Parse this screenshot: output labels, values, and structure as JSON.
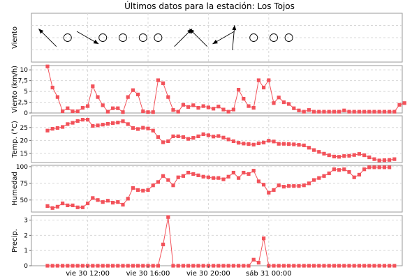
{
  "chart_data": {
    "title": "Últimos datos para la estación: Los Tojos",
    "type": "line",
    "accent_color": "#f2525a",
    "x_axis": {
      "labels": [
        "vie 30 12:00",
        "vie 30 16:00",
        "vie 30 20:00",
        "sáb 31 00:00"
      ],
      "label_index": [
        8,
        20,
        32,
        44
      ]
    },
    "panels": [
      {
        "key": "viento_dir",
        "ylabel": "Viento",
        "type": "wind",
        "wind": [
          {
            "i": 0,
            "calm": false,
            "to_deg": 315
          },
          {
            "i": 4,
            "calm": true
          },
          {
            "i": 8,
            "calm": false,
            "to_deg": 120
          },
          {
            "i": 11,
            "calm": true
          },
          {
            "i": 15,
            "calm": true
          },
          {
            "i": 19,
            "calm": true
          },
          {
            "i": 22,
            "calm": true
          },
          {
            "i": 27,
            "calm": false,
            "to_deg": 45
          },
          {
            "i": 30,
            "calm": false,
            "to_deg": 315
          },
          {
            "i": 35,
            "calm": false,
            "to_deg": 240
          },
          {
            "i": 37,
            "calm": false,
            "to_deg": 5
          },
          {
            "i": 41,
            "calm": true
          },
          {
            "i": 45,
            "calm": true
          },
          {
            "i": 48,
            "calm": true
          }
        ]
      },
      {
        "key": "viento",
        "ylabel": "Viento (km/h)",
        "ylim": [
          0,
          11
        ],
        "ticks": [
          0,
          2.5,
          5,
          7.5,
          10
        ],
        "tick_labels": [
          "0",
          "2,5",
          "5",
          "7,5",
          "10"
        ],
        "values": [
          10.8,
          5.9,
          3.7,
          0.4,
          1.1,
          0.4,
          0.4,
          1.2,
          1.6,
          6.2,
          3.7,
          1.8,
          0.3,
          1.1,
          1.1,
          0.2,
          3.7,
          5.3,
          4.3,
          0.4,
          0.2,
          0.2,
          7.6,
          6.9,
          3.7,
          0.7,
          0.3,
          1.9,
          1.4,
          1.8,
          1.2,
          1.6,
          1.3,
          1.0,
          1.5,
          0.8,
          0.3,
          0.8,
          5.4,
          3.3,
          1.6,
          1.2,
          7.6,
          5.9,
          7.6,
          2.3,
          3.6,
          2.5,
          2.1,
          1.1,
          0.6,
          0.3,
          0.7,
          0.3,
          0.3,
          0.3,
          0.3,
          0.3,
          0.3,
          0.6,
          0.3,
          0.3,
          0.3,
          0.3,
          0.3,
          0.3,
          0.3,
          0.3,
          0.3,
          0.3,
          1.9,
          2.3
        ]
      },
      {
        "key": "temp",
        "ylabel": "Temp. (°C)",
        "ylim": [
          11.5,
          29.5
        ],
        "ticks": [
          15,
          20,
          25
        ],
        "tick_labels": [
          "15",
          "20",
          "25"
        ],
        "values": [
          23.8,
          24.5,
          24.8,
          25.2,
          26.3,
          26.8,
          27.5,
          28.0,
          28.0,
          25.6,
          25.8,
          26.1,
          26.4,
          26.7,
          26.9,
          27.4,
          26.3,
          24.8,
          24.4,
          24.9,
          24.6,
          23.8,
          21.3,
          19.3,
          19.7,
          21.6,
          21.6,
          21.3,
          20.6,
          21.0,
          21.6,
          22.4,
          22.0,
          21.5,
          21.7,
          21.1,
          20.4,
          19.7,
          19.1,
          18.8,
          18.6,
          18.4,
          18.9,
          19.2,
          19.9,
          19.6,
          18.7,
          18.7,
          18.6,
          18.5,
          18.3,
          18.1,
          17.2,
          16.3,
          15.6,
          14.9,
          14.3,
          13.8,
          13.7,
          14.0,
          14.1,
          14.4,
          14.8,
          14.3,
          13.5,
          12.8,
          12.3,
          12.4,
          12.5,
          12.8
        ]
      },
      {
        "key": "hum",
        "ylabel": "Humedad",
        "ylim": [
          32,
          102
        ],
        "ticks": [
          50,
          75,
          100
        ],
        "tick_labels": [
          "50",
          "75",
          "100"
        ],
        "values": [
          41,
          38,
          40,
          45,
          42,
          42,
          39,
          39,
          45,
          53,
          50,
          47,
          49,
          46,
          47,
          43,
          52,
          68,
          65,
          64,
          65,
          72,
          77,
          86,
          80,
          72,
          84,
          86,
          91,
          89,
          87,
          85,
          84,
          83,
          83,
          81,
          85,
          91,
          83,
          91,
          89,
          94,
          78,
          73,
          61,
          65,
          72,
          70,
          71,
          71,
          71,
          72,
          75,
          80,
          83,
          86,
          90,
          96,
          95,
          96,
          92,
          84,
          88,
          96,
          99,
          99,
          99,
          99,
          99
        ]
      },
      {
        "key": "precip",
        "ylabel": "Precip.",
        "ylim": [
          0,
          3.3
        ],
        "ticks": [
          0,
          1,
          2,
          3
        ],
        "tick_labels": [
          "0",
          "1",
          "2",
          "3"
        ],
        "values": [
          0,
          0,
          0,
          0,
          0,
          0,
          0,
          0,
          0,
          0,
          0,
          0,
          0,
          0,
          0,
          0,
          0,
          0,
          0,
          0,
          0,
          0,
          0,
          1.4,
          3.2,
          0,
          0,
          0,
          0,
          0,
          0,
          0,
          0,
          0,
          0,
          0,
          0,
          0,
          0,
          0,
          0,
          0.4,
          0.2,
          1.8,
          0,
          0,
          0,
          0,
          0,
          0,
          0,
          0,
          0,
          0,
          0,
          0,
          0,
          0,
          0,
          0,
          0,
          0,
          0,
          0,
          0,
          0,
          0,
          0,
          0,
          0
        ]
      }
    ]
  }
}
